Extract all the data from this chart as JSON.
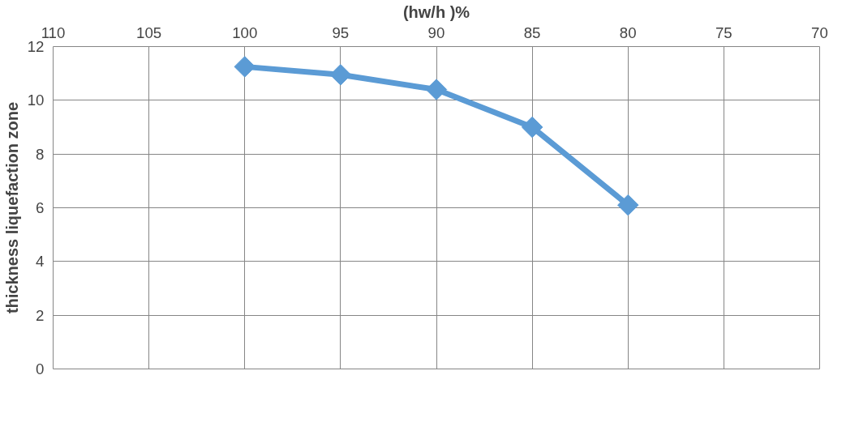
{
  "chart_data": {
    "type": "line",
    "xlabel": "(hw/h )%",
    "ylabel": "thickness liquefaction zone",
    "x": [
      100,
      95,
      90,
      85,
      80
    ],
    "series": [
      {
        "color": "#5b9bd5",
        "values": [
          11.25,
          10.95,
          10.4,
          9.0,
          6.1
        ]
      }
    ],
    "xlim": [
      110,
      70
    ],
    "xticks": [
      110,
      105,
      100,
      95,
      90,
      85,
      80,
      75,
      70
    ],
    "ylim": [
      0,
      12
    ],
    "yticks": [
      0,
      2,
      4,
      6,
      8,
      10,
      12
    ],
    "grid": true,
    "marker": "diamond",
    "line_style": "solid"
  }
}
